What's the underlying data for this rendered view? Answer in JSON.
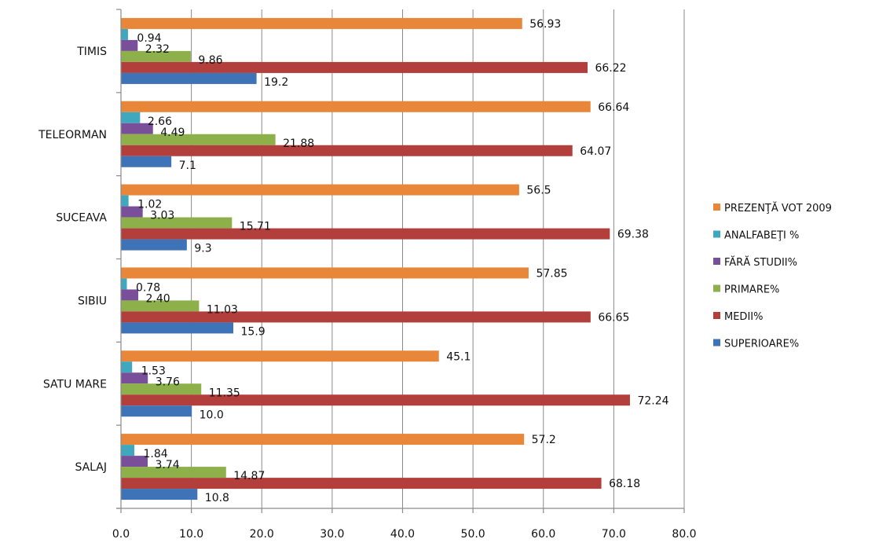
{
  "chart_data": {
    "type": "bar",
    "orientation": "horizontal",
    "title": "",
    "xlabel": "",
    "ylabel": "",
    "xlim": [
      0,
      80
    ],
    "x_ticks": [
      "0.0",
      "10.0",
      "20.0",
      "30.0",
      "40.0",
      "50.0",
      "60.0",
      "70.0",
      "80.0"
    ],
    "x_tick_values": [
      0,
      10,
      20,
      30,
      40,
      50,
      60,
      70,
      80
    ],
    "grid": true,
    "legend_position": "right",
    "categories": [
      "TIMIS",
      "TELEORMAN",
      "SUCEAVA",
      "SIBIU",
      "SATU MARE",
      "SALAJ"
    ],
    "series": [
      {
        "name": "PREZENŢĂ VOT 2009",
        "color": "#E8873A",
        "values": [
          56.93,
          66.64,
          56.5,
          57.85,
          45.1,
          57.2
        ],
        "labels": [
          "56.93",
          "66.64",
          "56.5",
          "57.85",
          "45.1",
          "57.2"
        ]
      },
      {
        "name": "ANALFABEŢI %",
        "color": "#3FA8BF",
        "values": [
          0.94,
          2.66,
          1.02,
          0.78,
          1.53,
          1.84
        ],
        "labels": [
          "0.94",
          "2.66",
          "1.02",
          "0.78",
          "1.53",
          "1.84"
        ]
      },
      {
        "name": "FĂRĂ STUDII%",
        "color": "#7A4F9A",
        "values": [
          2.32,
          4.49,
          3.03,
          2.4,
          3.76,
          3.74
        ],
        "labels": [
          "2.32",
          "4.49",
          "3.03",
          "2.40",
          "3.76",
          "3.74"
        ]
      },
      {
        "name": "PRIMARE%",
        "color": "#8DB04A",
        "values": [
          9.86,
          21.88,
          15.71,
          11.03,
          11.35,
          14.87
        ],
        "labels": [
          "9.86",
          "21.88",
          "15.71",
          "11.03",
          "11.35",
          "14.87"
        ]
      },
      {
        "name": "MEDII%",
        "color": "#B23F3C",
        "values": [
          66.22,
          64.07,
          69.38,
          66.65,
          72.24,
          68.18
        ],
        "labels": [
          "66.22",
          "64.07",
          "69.38",
          "66.65",
          "72.24",
          "68.18"
        ]
      },
      {
        "name": "SUPERIOARE%",
        "color": "#3E73B8",
        "values": [
          19.2,
          7.1,
          9.3,
          15.9,
          10.0,
          10.8
        ],
        "labels": [
          "19.2",
          "7.1",
          "9.3",
          "15.9",
          "10.0",
          "10.8"
        ]
      }
    ]
  }
}
